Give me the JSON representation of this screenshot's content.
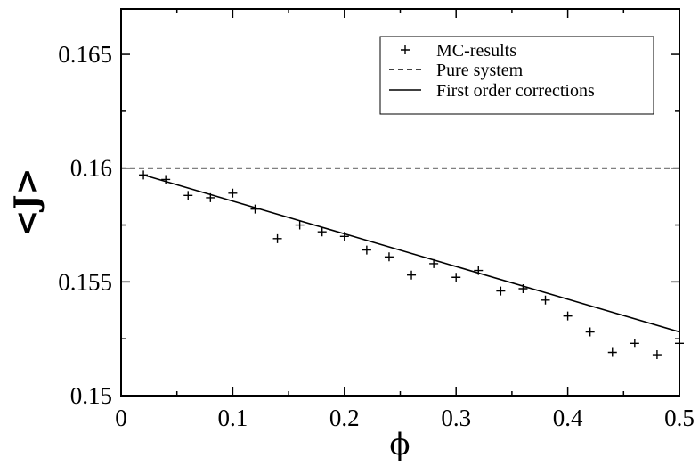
{
  "chart_data": {
    "type": "scatter",
    "title": "",
    "xlabel": "ϕ",
    "ylabel": "<J>",
    "xlim": [
      0,
      0.5
    ],
    "ylim": [
      0.15,
      0.167
    ],
    "xticks": [
      0,
      0.1,
      0.2,
      0.3,
      0.4,
      0.5
    ],
    "xtick_labels": [
      "0",
      "0.1",
      "0.2",
      "0.3",
      "0.4",
      "0.5"
    ],
    "yticks": [
      0.15,
      0.155,
      0.16,
      0.165
    ],
    "ytick_labels": [
      "0.15",
      "0.155",
      "0.16",
      "0.165"
    ],
    "grid": false,
    "legend_position": "top-right",
    "series": [
      {
        "name": "MC-results",
        "style": "markers-plus",
        "color": "#000000",
        "x": [
          0.02,
          0.04,
          0.06,
          0.08,
          0.1,
          0.12,
          0.14,
          0.16,
          0.18,
          0.2,
          0.22,
          0.24,
          0.26,
          0.28,
          0.3,
          0.32,
          0.34,
          0.36,
          0.38,
          0.4,
          0.42,
          0.44,
          0.46,
          0.48,
          0.5
        ],
        "y": [
          0.1597,
          0.1595,
          0.1588,
          0.1587,
          0.1589,
          0.1582,
          0.1569,
          0.1575,
          0.1572,
          0.157,
          0.1564,
          0.1561,
          0.1553,
          0.1558,
          0.1552,
          0.1555,
          0.1546,
          0.1547,
          0.1542,
          0.1535,
          0.1528,
          0.1519,
          0.1523,
          0.1518,
          0.1523
        ]
      },
      {
        "name": "Pure system",
        "style": "dashed-line",
        "color": "#000000",
        "x": [
          0,
          0.5
        ],
        "y": [
          0.16,
          0.16
        ]
      },
      {
        "name": "First order corrections",
        "style": "solid-line",
        "color": "#000000",
        "x": [
          0.02,
          0.5
        ],
        "y": [
          0.1597,
          0.1528
        ]
      }
    ]
  }
}
